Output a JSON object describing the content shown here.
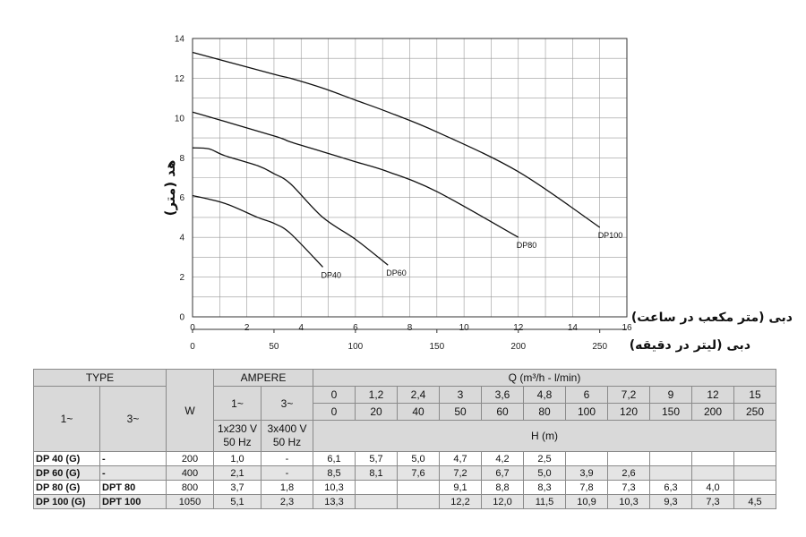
{
  "chart_data": {
    "type": "line",
    "ylabel": "هد (متر)",
    "xlabel": "دبی (متر مکعب در ساعت)",
    "xlabel_secondary": "دبی (لیتر در دقیقه)",
    "xlim": [
      0,
      16
    ],
    "ylim": [
      0,
      14
    ],
    "x_ticks": [
      0,
      2,
      4,
      6,
      8,
      10,
      12,
      14,
      16
    ],
    "y_ticks": [
      0,
      2,
      4,
      6,
      8,
      10,
      12,
      14
    ],
    "x2_ticks": [
      0,
      50,
      100,
      150,
      200,
      250
    ],
    "grid": true,
    "series": [
      {
        "name": "DP40",
        "x": [
          0,
          1.2,
          2.4,
          3,
          3.6,
          4.8
        ],
        "y": [
          6.1,
          5.7,
          5.0,
          4.7,
          4.2,
          2.5
        ]
      },
      {
        "name": "DP60",
        "x": [
          0,
          0.6,
          1.2,
          2.4,
          3,
          3.6,
          4.8,
          6,
          7.2
        ],
        "y": [
          8.5,
          8.45,
          8.1,
          7.6,
          7.2,
          6.7,
          5.0,
          3.9,
          2.6
        ]
      },
      {
        "name": "DP80",
        "x": [
          0,
          3,
          3.6,
          4.8,
          6,
          7.2,
          9,
          12
        ],
        "y": [
          10.3,
          9.1,
          8.8,
          8.3,
          7.8,
          7.3,
          6.3,
          4.0
        ]
      },
      {
        "name": "DP100",
        "x": [
          0,
          3,
          3.6,
          4.8,
          6,
          7.2,
          9,
          12,
          15
        ],
        "y": [
          13.3,
          12.2,
          12.0,
          11.5,
          10.9,
          10.3,
          9.3,
          7.3,
          4.5
        ]
      }
    ]
  },
  "table": {
    "type_header": "TYPE",
    "w_header": "W",
    "ampere_header": "AMPERE",
    "q_header": "Q (m³/h - l/min)",
    "single_phase": "1~",
    "three_phase": "3~",
    "amp_1_header": "1~",
    "amp_3_header": "3~",
    "amp_1_sub1": "1x230 V",
    "amp_1_sub2": "50 Hz",
    "amp_3_sub1": "3x400 V",
    "amp_3_sub2": "50 Hz",
    "h_header": "H (m)",
    "q_m3h": [
      "0",
      "1,2",
      "2,4",
      "3",
      "3,6",
      "4,8",
      "6",
      "7,2",
      "9",
      "12",
      "15"
    ],
    "q_lmin": [
      "0",
      "20",
      "40",
      "50",
      "60",
      "80",
      "100",
      "120",
      "150",
      "200",
      "250"
    ],
    "rows": [
      {
        "type1": "DP 40 (G)",
        "type3": "-",
        "w": "200",
        "amp1": "1,0",
        "amp3": "-",
        "h": [
          "6,1",
          "5,7",
          "5,0",
          "4,7",
          "4,2",
          "2,5",
          "",
          "",
          "",
          "",
          ""
        ]
      },
      {
        "type1": "DP 60 (G)",
        "type3": "-",
        "w": "400",
        "amp1": "2,1",
        "amp3": "-",
        "h": [
          "8,5",
          "8,1",
          "7,6",
          "7,2",
          "6,7",
          "5,0",
          "3,9",
          "2,6",
          "",
          "",
          ""
        ]
      },
      {
        "type1": "DP 80 (G)",
        "type3": "DPT 80",
        "w": "800",
        "amp1": "3,7",
        "amp3": "1,8",
        "h": [
          "10,3",
          "",
          "",
          "9,1",
          "8,8",
          "8,3",
          "7,8",
          "7,3",
          "6,3",
          "4,0",
          ""
        ]
      },
      {
        "type1": "DP 100 (G)",
        "type3": "DPT 100",
        "w": "1050",
        "amp1": "5,1",
        "amp3": "2,3",
        "h": [
          "13,3",
          "",
          "",
          "12,2",
          "12,0",
          "11,5",
          "10,9",
          "10,3",
          "9,3",
          "7,3",
          "4,5"
        ]
      }
    ]
  }
}
